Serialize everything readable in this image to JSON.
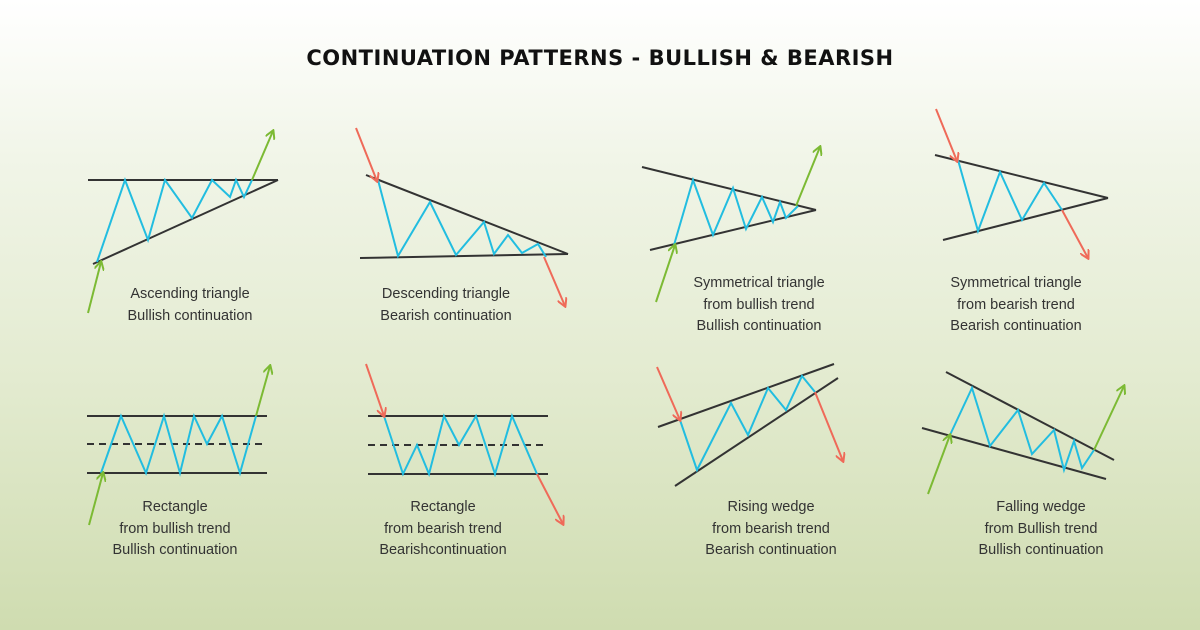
{
  "title": "CONTINUATION PATTERNS - BULLISH & BEARISH",
  "colors": {
    "price_line": "#22bde0",
    "trend_line": "#333333",
    "bullish_arrow": "#7cba34",
    "bearish_arrow": "#ef6a59"
  },
  "patterns": [
    {
      "name": "ascending-triangle",
      "caption": [
        "Ascending triangle",
        "Bullish continuation"
      ]
    },
    {
      "name": "descending-triangle",
      "caption": [
        "Descending triangle",
        "Bearish continuation"
      ]
    },
    {
      "name": "symmetrical-triangle-bullish",
      "caption": [
        "Symmetrical triangle",
        "from bullish trend",
        "Bullish continuation"
      ]
    },
    {
      "name": "symmetrical-triangle-bearish",
      "caption": [
        "Symmetrical triangle",
        "from bearish trend",
        "Bearish continuation"
      ]
    },
    {
      "name": "rectangle-bullish",
      "caption": [
        "Rectangle",
        "from bullish trend",
        "Bullish continuation"
      ]
    },
    {
      "name": "rectangle-bearish",
      "caption": [
        "Rectangle",
        "from bearish trend",
        "Bearishcontinuation"
      ]
    },
    {
      "name": "rising-wedge",
      "caption": [
        "Rising wedge",
        "from bearish trend",
        "Bearish continuation"
      ]
    },
    {
      "name": "falling-wedge",
      "caption": [
        "Falling wedge",
        "from Bullish trend",
        "Bullish continuation"
      ]
    }
  ]
}
